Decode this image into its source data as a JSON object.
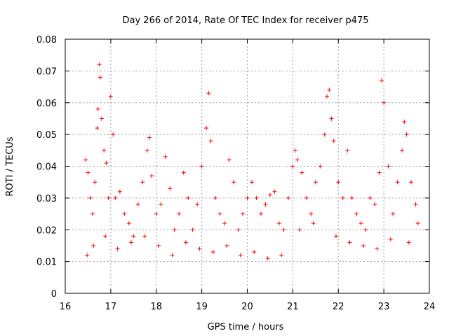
{
  "chart_data": {
    "type": "scatter",
    "title": "Day 266 of 2014, Rate Of TEC Index for receiver p475",
    "xlabel": "GPS time / hours",
    "ylabel": "ROTI / TECUs",
    "xlim": [
      16,
      24
    ],
    "ylim": [
      0,
      0.08
    ],
    "grid": true,
    "marker": "+",
    "color": "#ff0000",
    "x_ticks": [
      "16",
      "17",
      "18",
      "19",
      "20",
      "21",
      "22",
      "23",
      "24"
    ],
    "y_ticks": [
      "0",
      "0.01",
      "0.02",
      "0.03",
      "0.04",
      "0.05",
      "0.06",
      "0.07",
      "0.08"
    ],
    "series": [
      {
        "name": "ROTI",
        "x": [
          16.45,
          16.5,
          16.55,
          16.6,
          16.65,
          16.7,
          16.72,
          16.75,
          16.77,
          16.8,
          16.85,
          16.9,
          16.95,
          17.0,
          17.05,
          17.1,
          17.2,
          17.3,
          17.4,
          17.5,
          17.6,
          17.7,
          17.8,
          17.85,
          17.9,
          18.0,
          18.1,
          18.2,
          18.3,
          18.4,
          18.5,
          18.6,
          18.7,
          18.8,
          18.9,
          19.0,
          19.1,
          19.15,
          19.2,
          19.3,
          19.4,
          19.5,
          19.6,
          19.7,
          19.8,
          19.9,
          20.0,
          20.1,
          20.2,
          20.3,
          20.4,
          20.5,
          20.6,
          20.7,
          20.8,
          20.9,
          21.0,
          21.05,
          21.1,
          21.2,
          21.3,
          21.4,
          21.5,
          21.6,
          21.7,
          21.75,
          21.8,
          21.85,
          21.9,
          22.0,
          22.1,
          22.2,
          22.3,
          22.4,
          22.5,
          22.6,
          22.7,
          22.8,
          22.9,
          22.95,
          23.0,
          23.1,
          23.2,
          23.3,
          23.4,
          23.45,
          23.5,
          23.6,
          23.7,
          23.75,
          16.48,
          16.62,
          16.88,
          17.15,
          17.45,
          17.75,
          18.05,
          18.35,
          18.65,
          18.95,
          19.25,
          19.55,
          19.85,
          20.15,
          20.45,
          20.75,
          21.15,
          21.45,
          21.95,
          22.25,
          22.55,
          22.85,
          23.15,
          23.55
        ],
        "y": [
          0.042,
          0.038,
          0.03,
          0.025,
          0.035,
          0.052,
          0.058,
          0.072,
          0.068,
          0.055,
          0.045,
          0.041,
          0.03,
          0.062,
          0.05,
          0.03,
          0.032,
          0.025,
          0.022,
          0.018,
          0.028,
          0.035,
          0.045,
          0.049,
          0.037,
          0.025,
          0.028,
          0.043,
          0.033,
          0.02,
          0.025,
          0.038,
          0.03,
          0.02,
          0.028,
          0.04,
          0.052,
          0.063,
          0.048,
          0.03,
          0.025,
          0.022,
          0.042,
          0.035,
          0.02,
          0.025,
          0.03,
          0.035,
          0.03,
          0.025,
          0.028,
          0.031,
          0.032,
          0.022,
          0.02,
          0.03,
          0.04,
          0.045,
          0.042,
          0.038,
          0.03,
          0.025,
          0.035,
          0.04,
          0.05,
          0.062,
          0.064,
          0.055,
          0.048,
          0.035,
          0.03,
          0.045,
          0.03,
          0.025,
          0.022,
          0.02,
          0.03,
          0.028,
          0.038,
          0.067,
          0.06,
          0.04,
          0.025,
          0.035,
          0.045,
          0.054,
          0.05,
          0.035,
          0.028,
          0.022,
          0.012,
          0.015,
          0.018,
          0.014,
          0.016,
          0.018,
          0.015,
          0.012,
          0.016,
          0.014,
          0.013,
          0.015,
          0.012,
          0.013,
          0.011,
          0.012,
          0.02,
          0.022,
          0.018,
          0.016,
          0.015,
          0.014,
          0.017,
          0.016
        ]
      }
    ]
  }
}
